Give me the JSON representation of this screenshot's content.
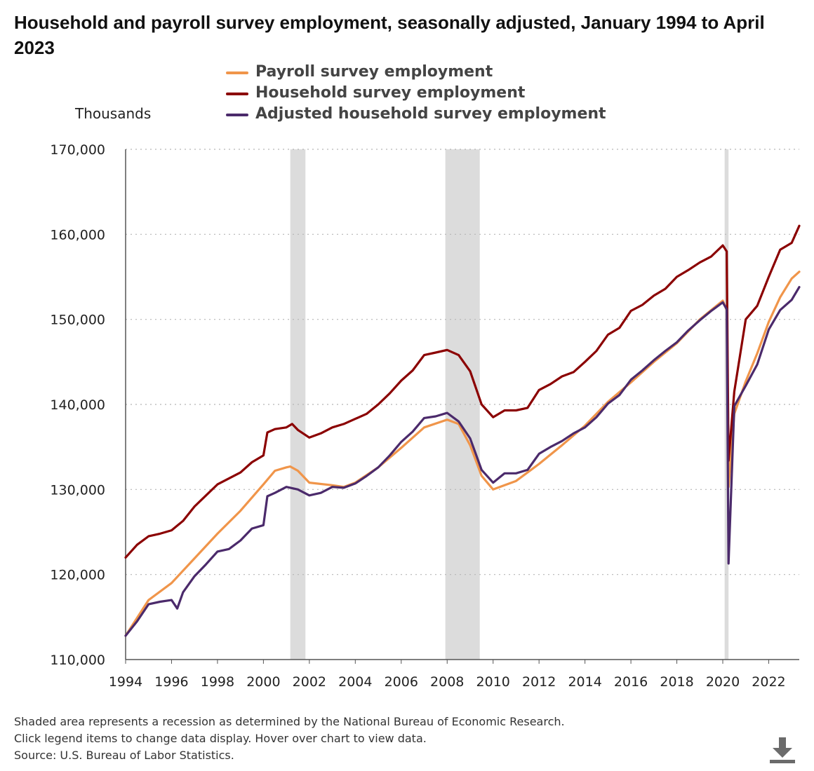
{
  "title": "Household and payroll survey employment, seasonally adjusted, January 1994 to April 2023",
  "units_label": "Thousands",
  "footnotes": [
    "Shaded area represents a recession as determined by the National Bureau of Economic Research.",
    "Click legend items to change data display. Hover over chart to view data.",
    "Source: U.S. Bureau of Labor Statistics."
  ],
  "download_icon": "download-icon",
  "chart_data": {
    "type": "line",
    "ylim": [
      110000,
      170000
    ],
    "xlim": [
      1994.0,
      2023.33
    ],
    "yticks": [
      110000,
      120000,
      130000,
      140000,
      150000,
      160000,
      170000
    ],
    "ytick_labels": [
      "110,000",
      "120,000",
      "130,000",
      "140,000",
      "150,000",
      "160,000",
      "170,000"
    ],
    "xticks": [
      1994,
      1996,
      1998,
      2000,
      2002,
      2004,
      2006,
      2008,
      2010,
      2012,
      2014,
      2016,
      2018,
      2020,
      2022
    ],
    "xtick_labels": [
      "1994",
      "1996",
      "1998",
      "2000",
      "2002",
      "2004",
      "2006",
      "2008",
      "2010",
      "2012",
      "2014",
      "2016",
      "2018",
      "2020",
      "2022"
    ],
    "grid": "horizontal dotted",
    "recessions": [
      [
        2001.17,
        2001.83
      ],
      [
        2007.92,
        2009.42
      ],
      [
        2020.08,
        2020.25
      ]
    ],
    "series": [
      {
        "name": "Payroll survey employment",
        "color": "#f0954a",
        "points": [
          [
            1994.0,
            112800
          ],
          [
            1995.0,
            117000
          ],
          [
            1996.0,
            119000
          ],
          [
            1997.0,
            121900
          ],
          [
            1998.0,
            124800
          ],
          [
            1999.0,
            127500
          ],
          [
            2000.0,
            130600
          ],
          [
            2000.5,
            132200
          ],
          [
            2001.0,
            132600
          ],
          [
            2001.17,
            132700
          ],
          [
            2001.5,
            132200
          ],
          [
            2002.0,
            130800
          ],
          [
            2003.0,
            130500
          ],
          [
            2003.5,
            130300
          ],
          [
            2004.0,
            130800
          ],
          [
            2005.0,
            132600
          ],
          [
            2006.0,
            134900
          ],
          [
            2007.0,
            137300
          ],
          [
            2008.0,
            138200
          ],
          [
            2008.5,
            137700
          ],
          [
            2009.0,
            135200
          ],
          [
            2009.5,
            131600
          ],
          [
            2010.0,
            130000
          ],
          [
            2011.0,
            131000
          ],
          [
            2012.0,
            133000
          ],
          [
            2013.0,
            135200
          ],
          [
            2014.0,
            137500
          ],
          [
            2015.0,
            140300
          ],
          [
            2016.0,
            142600
          ],
          [
            2017.0,
            145000
          ],
          [
            2018.0,
            147200
          ],
          [
            2019.0,
            150000
          ],
          [
            2020.0,
            152200
          ],
          [
            2020.17,
            151100
          ],
          [
            2020.25,
            130300
          ],
          [
            2020.5,
            138900
          ],
          [
            2021.0,
            142700
          ],
          [
            2021.5,
            146000
          ],
          [
            2022.0,
            149700
          ],
          [
            2022.5,
            152600
          ],
          [
            2023.0,
            154800
          ],
          [
            2023.33,
            155600
          ]
        ]
      },
      {
        "name": "Household survey employment",
        "color": "#8b0000",
        "points": [
          [
            1994.0,
            122000
          ],
          [
            1994.5,
            123500
          ],
          [
            1995.0,
            124500
          ],
          [
            1995.5,
            124800
          ],
          [
            1996.0,
            125200
          ],
          [
            1996.5,
            126300
          ],
          [
            1997.0,
            128000
          ],
          [
            1997.5,
            129300
          ],
          [
            1998.0,
            130600
          ],
          [
            1998.5,
            131300
          ],
          [
            1999.0,
            132000
          ],
          [
            1999.5,
            133200
          ],
          [
            2000.0,
            134000
          ],
          [
            2000.17,
            136700
          ],
          [
            2000.5,
            137100
          ],
          [
            2001.0,
            137300
          ],
          [
            2001.25,
            137700
          ],
          [
            2001.5,
            137000
          ],
          [
            2002.0,
            136100
          ],
          [
            2002.5,
            136600
          ],
          [
            2003.0,
            137300
          ],
          [
            2003.5,
            137700
          ],
          [
            2004.0,
            138300
          ],
          [
            2004.5,
            138900
          ],
          [
            2005.0,
            140000
          ],
          [
            2005.5,
            141300
          ],
          [
            2006.0,
            142800
          ],
          [
            2006.5,
            144000
          ],
          [
            2007.0,
            145800
          ],
          [
            2007.5,
            146100
          ],
          [
            2008.0,
            146400
          ],
          [
            2008.5,
            145800
          ],
          [
            2009.0,
            143900
          ],
          [
            2009.5,
            140000
          ],
          [
            2010.0,
            138500
          ],
          [
            2010.5,
            139300
          ],
          [
            2011.0,
            139300
          ],
          [
            2011.5,
            139600
          ],
          [
            2012.0,
            141700
          ],
          [
            2012.5,
            142400
          ],
          [
            2013.0,
            143300
          ],
          [
            2013.5,
            143800
          ],
          [
            2014.0,
            145000
          ],
          [
            2014.5,
            146300
          ],
          [
            2015.0,
            148200
          ],
          [
            2015.5,
            149000
          ],
          [
            2016.0,
            151000
          ],
          [
            2016.5,
            151700
          ],
          [
            2017.0,
            152800
          ],
          [
            2017.5,
            153600
          ],
          [
            2018.0,
            155000
          ],
          [
            2018.5,
            155800
          ],
          [
            2019.0,
            156700
          ],
          [
            2019.5,
            157400
          ],
          [
            2020.0,
            158700
          ],
          [
            2020.17,
            158000
          ],
          [
            2020.25,
            133400
          ],
          [
            2020.5,
            141500
          ],
          [
            2021.0,
            150000
          ],
          [
            2021.5,
            151600
          ],
          [
            2022.0,
            155000
          ],
          [
            2022.5,
            158200
          ],
          [
            2023.0,
            159000
          ],
          [
            2023.33,
            161000
          ]
        ]
      },
      {
        "name": "Adjusted household survey employment",
        "color": "#4b2a6b",
        "points": [
          [
            1994.0,
            112800
          ],
          [
            1994.5,
            114500
          ],
          [
            1995.0,
            116500
          ],
          [
            1995.5,
            116800
          ],
          [
            1996.0,
            117000
          ],
          [
            1996.25,
            116000
          ],
          [
            1996.5,
            117900
          ],
          [
            1997.0,
            119800
          ],
          [
            1997.5,
            121200
          ],
          [
            1998.0,
            122700
          ],
          [
            1998.5,
            123000
          ],
          [
            1999.0,
            124000
          ],
          [
            1999.5,
            125400
          ],
          [
            2000.0,
            125800
          ],
          [
            2000.17,
            129200
          ],
          [
            2000.5,
            129600
          ],
          [
            2001.0,
            130300
          ],
          [
            2001.5,
            130000
          ],
          [
            2002.0,
            129300
          ],
          [
            2002.5,
            129600
          ],
          [
            2003.0,
            130300
          ],
          [
            2003.5,
            130200
          ],
          [
            2004.0,
            130700
          ],
          [
            2004.5,
            131600
          ],
          [
            2005.0,
            132600
          ],
          [
            2005.5,
            134000
          ],
          [
            2006.0,
            135600
          ],
          [
            2006.5,
            136800
          ],
          [
            2007.0,
            138400
          ],
          [
            2007.5,
            138600
          ],
          [
            2008.0,
            139000
          ],
          [
            2008.5,
            138000
          ],
          [
            2009.0,
            136000
          ],
          [
            2009.5,
            132300
          ],
          [
            2010.0,
            130800
          ],
          [
            2010.5,
            131900
          ],
          [
            2011.0,
            131900
          ],
          [
            2011.5,
            132300
          ],
          [
            2012.0,
            134200
          ],
          [
            2012.5,
            135000
          ],
          [
            2013.0,
            135700
          ],
          [
            2013.5,
            136600
          ],
          [
            2014.0,
            137300
          ],
          [
            2014.5,
            138500
          ],
          [
            2015.0,
            140100
          ],
          [
            2015.5,
            141100
          ],
          [
            2016.0,
            142900
          ],
          [
            2016.5,
            144000
          ],
          [
            2017.0,
            145200
          ],
          [
            2017.5,
            146300
          ],
          [
            2018.0,
            147300
          ],
          [
            2018.5,
            148700
          ],
          [
            2019.0,
            149900
          ],
          [
            2019.5,
            151000
          ],
          [
            2020.0,
            152000
          ],
          [
            2020.17,
            151200
          ],
          [
            2020.25,
            121300
          ],
          [
            2020.5,
            139800
          ],
          [
            2021.0,
            142200
          ],
          [
            2021.5,
            144700
          ],
          [
            2022.0,
            148800
          ],
          [
            2022.5,
            151100
          ],
          [
            2023.0,
            152300
          ],
          [
            2023.33,
            153800
          ]
        ]
      }
    ]
  }
}
